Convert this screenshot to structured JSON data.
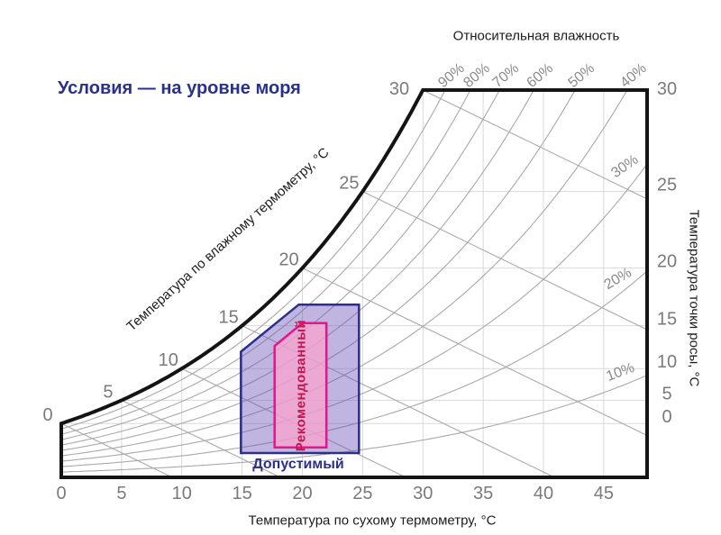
{
  "title": "Условия — на уровне моря",
  "axes": {
    "top_title": "Относительная влажность",
    "bottom_title": "Температура по сухому термометру, °С",
    "right_title": "Температура точки росы, °С",
    "curve_title": "Температура по влажному термометру, °С"
  },
  "chart_data": {
    "type": "line",
    "subtype": "psychrometric-chart",
    "condition": "sea level",
    "dry_bulb_axis": {
      "label": "Температура по сухому термометру, °С",
      "ticks": [
        0,
        5,
        10,
        15,
        20,
        25,
        30,
        35,
        40,
        45
      ],
      "range_c": [
        0,
        48.6
      ]
    },
    "dew_point_axis": {
      "label": "Температура точки росы, °С",
      "ticks": [
        0,
        5,
        10,
        15,
        20,
        25,
        30
      ]
    },
    "wet_bulb_axis": {
      "label": "Температура по влажному термометру, °С",
      "ticks": [
        0,
        5,
        10,
        15,
        20,
        25,
        30
      ]
    },
    "humidity_ratio_range_g_per_kg": [
      0,
      27.1
    ],
    "rh_curves_percent": [
      10,
      20,
      30,
      40,
      50,
      60,
      70,
      80,
      90
    ],
    "rh_top_labels": [
      {
        "rh": 90,
        "label": "90%"
      },
      {
        "rh": 80,
        "label": "80%"
      },
      {
        "rh": 70,
        "label": "70%"
      },
      {
        "rh": 60,
        "label": "60%"
      },
      {
        "rh": 50,
        "label": "50%"
      },
      {
        "rh": 40,
        "label": "40%"
      }
    ],
    "rh_side_labels": [
      {
        "rh": 30,
        "label": "30%"
      },
      {
        "rh": 20,
        "label": "20%"
      },
      {
        "rh": 10,
        "label": "10%"
      }
    ],
    "wet_bulb_line_slope_g_per_kg_per_c": -0.41,
    "zones": [
      {
        "id": "allowable",
        "label": "Допустимый",
        "outline_color": "#2b2f8e",
        "fill_color": "rgba(104,78,183,0.42)",
        "points_tc_w": [
          [
            14.9,
            1.7
          ],
          [
            14.9,
            8.8
          ],
          [
            19.7,
            12.1
          ],
          [
            24.7,
            12.1
          ],
          [
            24.7,
            1.7
          ]
        ]
      },
      {
        "id": "recommended",
        "label": "Рекомендованный",
        "outline_color": "#e8148c",
        "fill_color": "rgba(248,164,205,0.75)",
        "points_tc_w": [
          [
            17.7,
            2.1
          ],
          [
            17.7,
            9.2
          ],
          [
            20.0,
            10.8
          ],
          [
            22.0,
            10.8
          ],
          [
            22.0,
            2.1
          ]
        ]
      }
    ]
  },
  "colors": {
    "grid": "#d9d9d9",
    "curves": "#a9a9a9",
    "tick_text": "#7a7a7a",
    "rh_text": "#8a8a8a",
    "border": "#141414",
    "title_blue": "#28328c",
    "recommended_text": "#c2174e"
  }
}
